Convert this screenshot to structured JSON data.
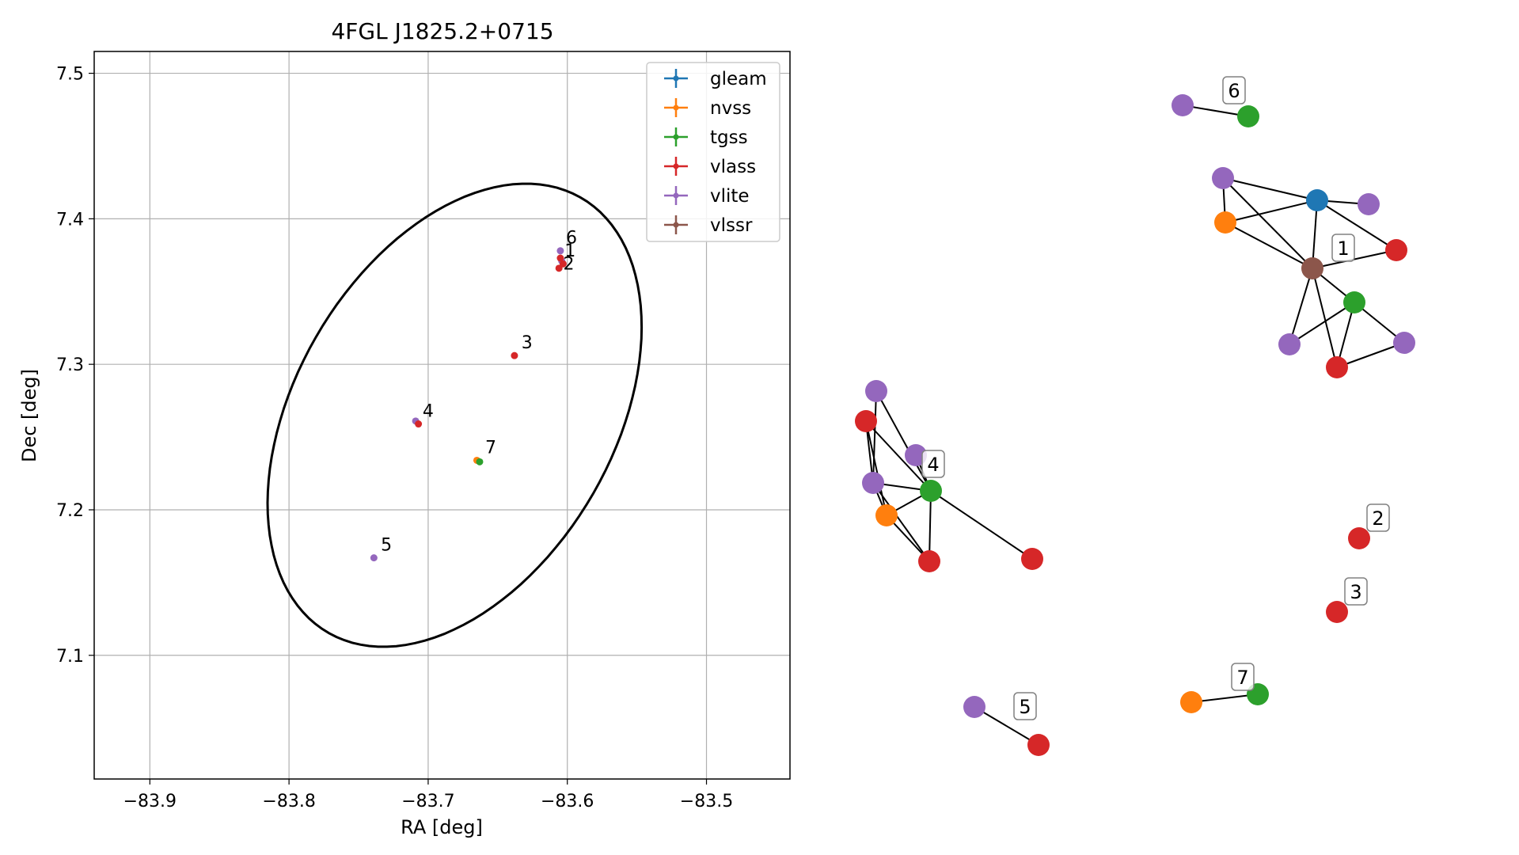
{
  "chart_data": [
    {
      "type": "scatter",
      "title": "4FGL J1825.2+0715",
      "xlabel": "RA [deg]",
      "ylabel": "Dec [deg]",
      "xlim": [
        -83.94,
        -83.44
      ],
      "ylim": [
        7.015,
        7.515
      ],
      "xticks": [
        -83.9,
        -83.8,
        -83.7,
        -83.6,
        -83.5
      ],
      "yticks": [
        7.1,
        7.2,
        7.3,
        7.4,
        7.5
      ],
      "xtick_labels": [
        "−83.9",
        "−83.8",
        "−83.7",
        "−83.6",
        "−83.5"
      ],
      "ytick_labels": [
        "7.1",
        "7.2",
        "7.3",
        "7.4",
        "7.5"
      ],
      "grid": true,
      "legend_position": "top-right",
      "legend": [
        {
          "name": "gleam",
          "color": "#1f77b4"
        },
        {
          "name": "nvss",
          "color": "#ff7f0e"
        },
        {
          "name": "tgss",
          "color": "#2ca02c"
        },
        {
          "name": "vlass",
          "color": "#d62728"
        },
        {
          "name": "vlite",
          "color": "#9467bd"
        },
        {
          "name": "vlssr",
          "color": "#8c564b"
        }
      ],
      "ellipse": {
        "center": [
          -83.681,
          7.265
        ],
        "semi_major_deg": 0.175,
        "semi_minor_deg": 0.113,
        "angle_deg": 57,
        "color": "#000000"
      },
      "points": [
        {
          "survey": "vlass",
          "ra": -83.606,
          "dec": 7.366
        },
        {
          "survey": "vlite",
          "ra": -83.604,
          "dec": 7.371
        },
        {
          "survey": "vlass",
          "ra": -83.605,
          "dec": 7.373
        },
        {
          "survey": "vlite",
          "ra": -83.605,
          "dec": 7.378
        },
        {
          "survey": "vlass",
          "ra": -83.603,
          "dec": 7.369
        },
        {
          "survey": "vlass",
          "ra": -83.638,
          "dec": 7.306
        },
        {
          "survey": "vlite",
          "ra": -83.709,
          "dec": 7.261
        },
        {
          "survey": "vlass",
          "ra": -83.707,
          "dec": 7.259
        },
        {
          "survey": "nvss",
          "ra": -83.665,
          "dec": 7.234
        },
        {
          "survey": "tgss",
          "ra": -83.663,
          "dec": 7.233
        },
        {
          "survey": "vlite",
          "ra": -83.739,
          "dec": 7.167
        }
      ],
      "labels": [
        {
          "text": "1",
          "ra": -83.602,
          "dec": 7.374
        },
        {
          "text": "2",
          "ra": -83.603,
          "dec": 7.365
        },
        {
          "text": "3",
          "ra": -83.633,
          "dec": 7.311
        },
        {
          "text": "4",
          "ra": -83.704,
          "dec": 7.264
        },
        {
          "text": "5",
          "ra": -83.734,
          "dec": 7.172
        },
        {
          "text": "6",
          "ra": -83.601,
          "dec": 7.383
        },
        {
          "text": "7",
          "ra": -83.659,
          "dec": 7.239
        }
      ]
    }
  ],
  "graph": {
    "nodes": [
      {
        "id": "g6a",
        "survey": "vlite",
        "color": "#9467bd"
      },
      {
        "id": "g6b",
        "survey": "tgss",
        "color": "#2ca02c"
      },
      {
        "id": "a1",
        "survey": "vlite",
        "color": "#9467bd"
      },
      {
        "id": "a2",
        "survey": "gleam",
        "color": "#1f77b4"
      },
      {
        "id": "a3",
        "survey": "vlite",
        "color": "#9467bd"
      },
      {
        "id": "a4",
        "survey": "nvss",
        "color": "#ff7f0e"
      },
      {
        "id": "a5",
        "survey": "vlssr",
        "color": "#8c564b"
      },
      {
        "id": "a6",
        "survey": "vlass",
        "color": "#d62728"
      },
      {
        "id": "a7",
        "survey": "tgss",
        "color": "#2ca02c"
      },
      {
        "id": "a8",
        "survey": "vlite",
        "color": "#9467bd"
      },
      {
        "id": "a9",
        "survey": "vlass",
        "color": "#d62728"
      },
      {
        "id": "a10",
        "survey": "vlite",
        "color": "#9467bd"
      },
      {
        "id": "b1",
        "survey": "vlite",
        "color": "#9467bd"
      },
      {
        "id": "b2",
        "survey": "vlass",
        "color": "#d62728"
      },
      {
        "id": "b3",
        "survey": "vlite",
        "color": "#9467bd"
      },
      {
        "id": "b4",
        "survey": "vlite",
        "color": "#9467bd"
      },
      {
        "id": "b5",
        "survey": "tgss",
        "color": "#2ca02c"
      },
      {
        "id": "b6",
        "survey": "nvss",
        "color": "#ff7f0e"
      },
      {
        "id": "b7",
        "survey": "vlass",
        "color": "#d62728"
      },
      {
        "id": "b8",
        "survey": "vlass",
        "color": "#d62728"
      },
      {
        "id": "c2",
        "survey": "vlass",
        "color": "#d62728"
      },
      {
        "id": "c3",
        "survey": "vlass",
        "color": "#d62728"
      },
      {
        "id": "g7a",
        "survey": "nvss",
        "color": "#ff7f0e"
      },
      {
        "id": "g7b",
        "survey": "tgss",
        "color": "#2ca02c"
      },
      {
        "id": "g5a",
        "survey": "vlite",
        "color": "#9467bd"
      },
      {
        "id": "g5b",
        "survey": "vlass",
        "color": "#d62728"
      }
    ],
    "edges": [
      [
        "g6a",
        "g6b"
      ],
      [
        "a1",
        "a2"
      ],
      [
        "a1",
        "a4"
      ],
      [
        "a1",
        "a5"
      ],
      [
        "a4",
        "a2"
      ],
      [
        "a2",
        "a3"
      ],
      [
        "a2",
        "a5"
      ],
      [
        "a2",
        "a6"
      ],
      [
        "a4",
        "a5"
      ],
      [
        "a5",
        "a6"
      ],
      [
        "a5",
        "a7"
      ],
      [
        "a5",
        "a8"
      ],
      [
        "a5",
        "a9"
      ],
      [
        "a7",
        "a8"
      ],
      [
        "a7",
        "a9"
      ],
      [
        "a7",
        "a10"
      ],
      [
        "a9",
        "a10"
      ],
      [
        "b1",
        "b4"
      ],
      [
        "b1",
        "b5"
      ],
      [
        "b2",
        "b4"
      ],
      [
        "b2",
        "b5"
      ],
      [
        "b2",
        "b6"
      ],
      [
        "b3",
        "b5"
      ],
      [
        "b6",
        "b4"
      ],
      [
        "b6",
        "b5"
      ],
      [
        "b6",
        "b7"
      ],
      [
        "b4",
        "b5"
      ],
      [
        "b4",
        "b7"
      ],
      [
        "b5",
        "b7"
      ],
      [
        "b5",
        "b8"
      ],
      [
        "g7a",
        "g7b"
      ],
      [
        "g5a",
        "g5b"
      ]
    ],
    "labels": [
      "1",
      "2",
      "3",
      "4",
      "5",
      "6",
      "7"
    ]
  }
}
